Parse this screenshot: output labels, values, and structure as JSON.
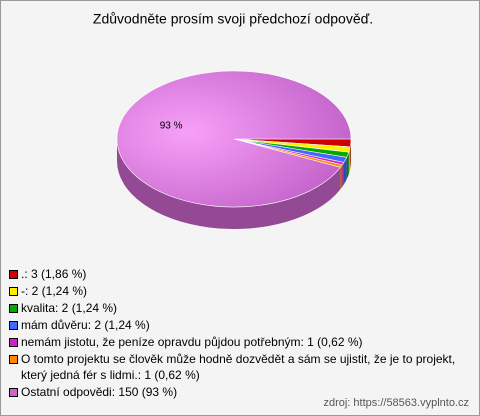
{
  "chart_data": {
    "type": "pie3d",
    "title": "Zdůvodněte prosím svoji předchozí odpověď.",
    "categories": [
      ".: 3 (1,86 %)",
      "-: 2 (1,24 %)",
      "kvalita: 2 (1,24 %)",
      "mám důvěru: 2 (1,24 %)",
      "nemám jistotu, že peníze opravdu půjdou potřebným: 1 (0,62 %)",
      "O tomto projektu se člověk může hodně dozvědět a sám se ujistit, že je to projekt, který jedná fér s lidmi.: 1 (0,62 %)",
      "Ostatní odpovědi: 150 (93 %)"
    ],
    "values": [
      1.86,
      1.24,
      1.24,
      1.24,
      0.62,
      0.62,
      93
    ],
    "value_labels": [
      null,
      null,
      null,
      null,
      null,
      null,
      "93 %"
    ],
    "colors": [
      "#cc0000",
      "#ffee00",
      "#00aa00",
      "#4466ff",
      "#cc22cc",
      "#ff8800",
      "#cc66cc"
    ],
    "source": "zdroj: https://58563.vyplnto.cz"
  }
}
